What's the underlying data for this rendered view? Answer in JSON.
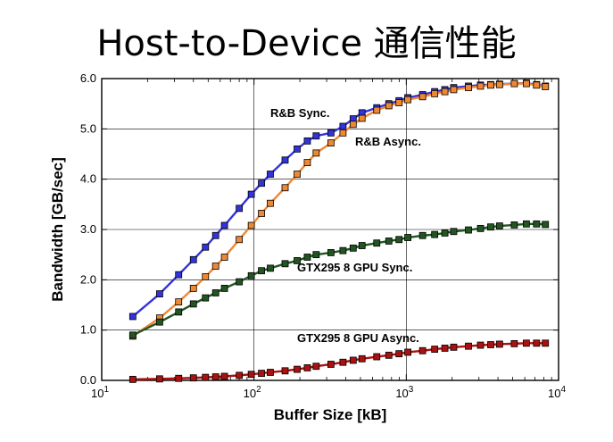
{
  "title": "Host-to-Device 通信性能",
  "chart_data": {
    "type": "line",
    "xlabel": "Buffer Size [kB]",
    "ylabel": "Bandwidth [GB/sec]",
    "xscale": "log",
    "xlim": [
      10,
      10000
    ],
    "ylim": [
      0,
      6
    ],
    "grid": true,
    "x_ticks": [
      {
        "base": "10",
        "exp": "1",
        "value": 10
      },
      {
        "base": "10",
        "exp": "2",
        "value": 100
      },
      {
        "base": "10",
        "exp": "3",
        "value": 1000
      },
      {
        "base": "10",
        "exp": "4",
        "value": 10000
      }
    ],
    "y_ticks": [
      "0.0",
      "1.0",
      "2.0",
      "3.0",
      "4.0",
      "5.0",
      "6.0"
    ],
    "x": [
      16,
      24,
      32,
      40,
      48,
      56,
      64,
      80,
      96,
      112,
      128,
      160,
      192,
      224,
      256,
      320,
      384,
      448,
      512,
      640,
      768,
      896,
      1024,
      1280,
      1536,
      1792,
      2048,
      2560,
      3072,
      3584,
      4096,
      5120,
      6144,
      7168,
      8192
    ],
    "series": [
      {
        "name": "R&B  Sync.",
        "color": "#3333dd",
        "values": [
          1.27,
          1.72,
          2.1,
          2.4,
          2.65,
          2.88,
          3.08,
          3.42,
          3.7,
          3.92,
          4.1,
          4.38,
          4.6,
          4.76,
          4.86,
          4.92,
          5.05,
          5.2,
          5.32,
          5.42,
          5.5,
          5.56,
          5.62,
          5.68,
          5.74,
          5.78,
          5.82,
          5.85,
          5.87,
          5.88,
          5.89,
          5.9,
          5.91,
          5.88,
          5.85
        ]
      },
      {
        "name": "R&B  Async.",
        "color": "#ee8833",
        "values": [
          0.88,
          1.24,
          1.56,
          1.83,
          2.06,
          2.27,
          2.45,
          2.8,
          3.08,
          3.32,
          3.52,
          3.83,
          4.1,
          4.33,
          4.52,
          4.72,
          4.92,
          5.09,
          5.21,
          5.37,
          5.46,
          5.52,
          5.58,
          5.64,
          5.7,
          5.74,
          5.78,
          5.82,
          5.85,
          5.87,
          5.88,
          5.9,
          5.9,
          5.87,
          5.84
        ]
      },
      {
        "name": "GTX295  8 GPU  Sync.",
        "color": "#225522",
        "values": [
          0.9,
          1.16,
          1.36,
          1.52,
          1.64,
          1.74,
          1.83,
          1.96,
          2.08,
          2.18,
          2.23,
          2.32,
          2.38,
          2.45,
          2.5,
          2.54,
          2.58,
          2.63,
          2.68,
          2.73,
          2.77,
          2.8,
          2.84,
          2.88,
          2.9,
          2.93,
          2.96,
          2.99,
          3.02,
          3.05,
          3.07,
          3.09,
          3.11,
          3.11,
          3.1
        ]
      },
      {
        "name": "GTX295  8 GPU  Async.",
        "color": "#aa1111",
        "values": [
          0.02,
          0.03,
          0.04,
          0.05,
          0.06,
          0.07,
          0.08,
          0.1,
          0.12,
          0.14,
          0.16,
          0.19,
          0.22,
          0.25,
          0.28,
          0.32,
          0.36,
          0.4,
          0.43,
          0.47,
          0.5,
          0.53,
          0.56,
          0.59,
          0.62,
          0.64,
          0.66,
          0.68,
          0.7,
          0.71,
          0.72,
          0.73,
          0.74,
          0.74,
          0.74
        ]
      }
    ]
  }
}
